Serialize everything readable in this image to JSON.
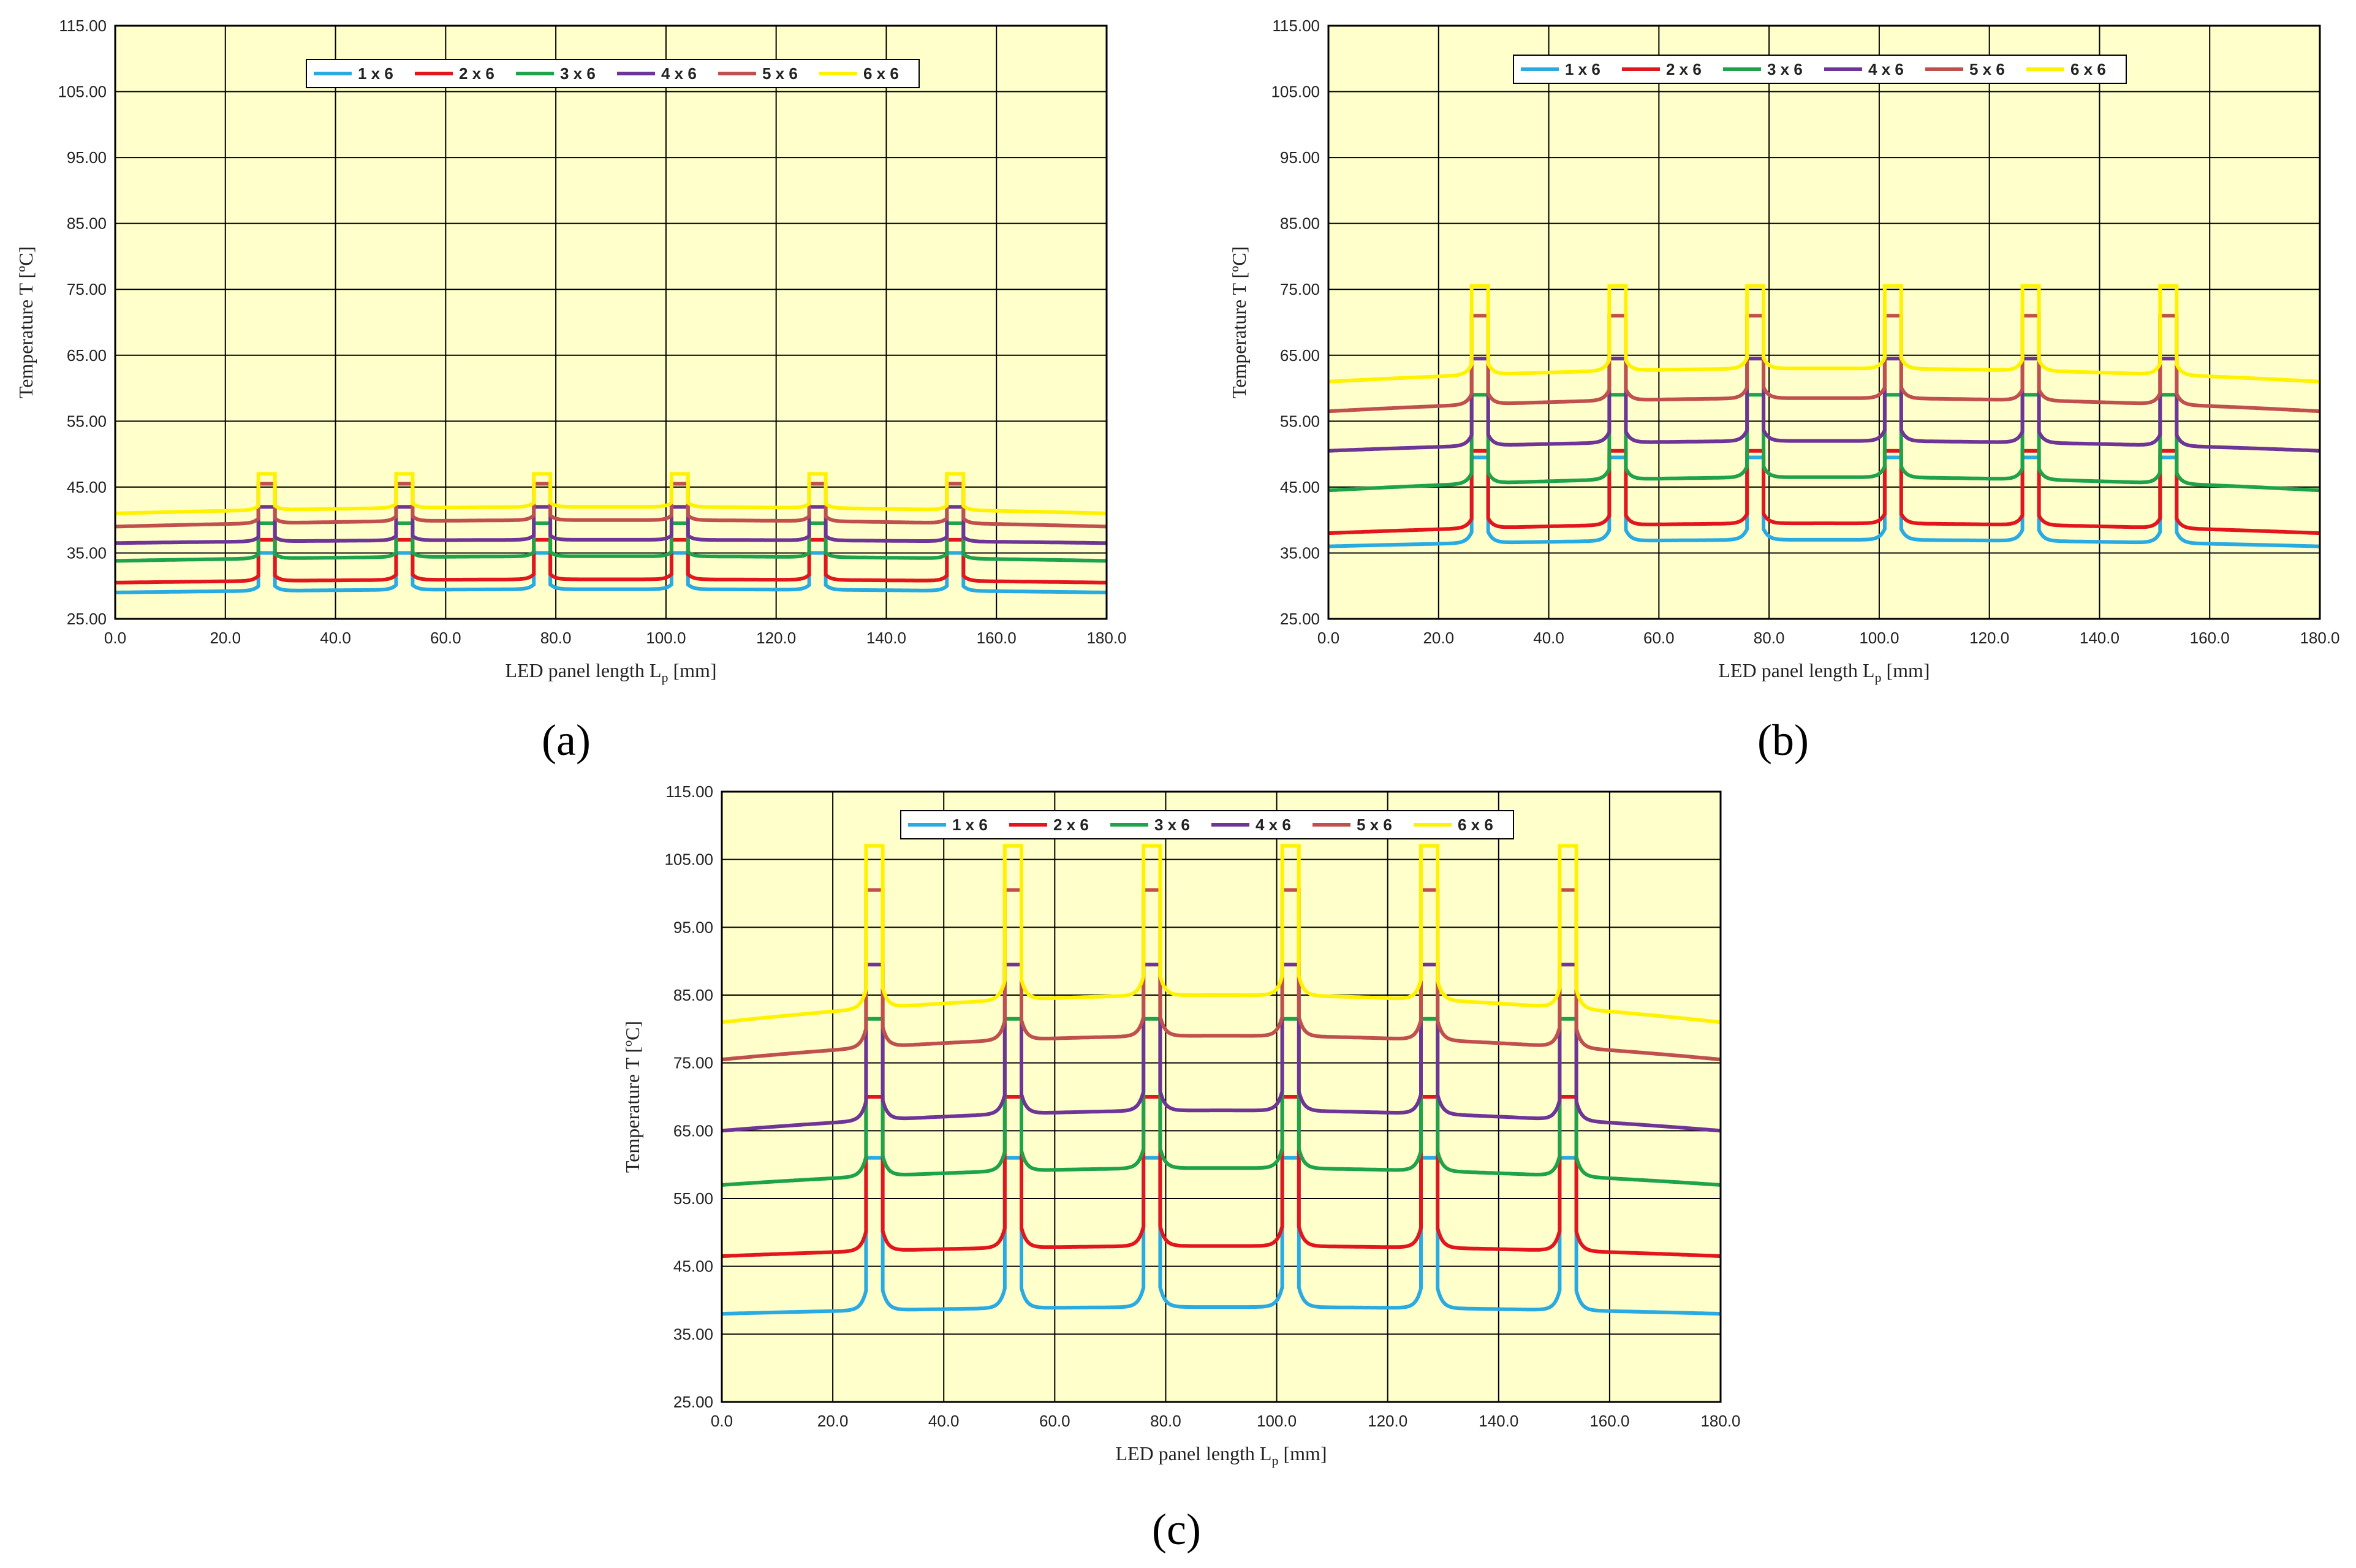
{
  "colors": {
    "plot_bg": "#FFFFCC",
    "grid": "#000000",
    "series": [
      "#29ABE2",
      "#E3161D",
      "#1FA34A",
      "#6E3596",
      "#C0504D",
      "#FFF200"
    ]
  },
  "chart_data": [
    {
      "type": "line",
      "panel_label": "(a)",
      "xlabel": "LED panel length L",
      "xlabel_sub": "p",
      "xlabel_unit": " [mm]",
      "ylabel": "Temperature T [ºC]",
      "xlim": [
        0,
        180
      ],
      "ylim": [
        25,
        115
      ],
      "x_ticks": [
        "0.0",
        "20.0",
        "40.0",
        "60.0",
        "80.0",
        "100.0",
        "120.0",
        "140.0",
        "160.0",
        "180.0"
      ],
      "y_ticks": [
        "25.00",
        "35.00",
        "45.00",
        "55.00",
        "65.00",
        "75.00",
        "85.00",
        "95.00",
        "105.00",
        "115.00"
      ],
      "led_positions": [
        27.5,
        52.5,
        77.5,
        102.5,
        127.5,
        152.5
      ],
      "led_half_width": 1.5,
      "series": [
        {
          "name": "1 x 6",
          "base_edge": 29.0,
          "base_center": 29.5,
          "peak": 35.0
        },
        {
          "name": "2 x 6",
          "base_edge": 30.5,
          "base_center": 31.0,
          "peak": 37.0
        },
        {
          "name": "3 x 6",
          "base_edge": 33.8,
          "base_center": 34.5,
          "peak": 39.5
        },
        {
          "name": "4 x 6",
          "base_edge": 36.5,
          "base_center": 37.0,
          "peak": 42.0
        },
        {
          "name": "5 x 6",
          "base_edge": 39.0,
          "base_center": 40.0,
          "peak": 45.5
        },
        {
          "name": "6 x 6",
          "base_edge": 41.0,
          "base_center": 42.0,
          "peak": 47.0
        }
      ]
    },
    {
      "type": "line",
      "panel_label": "(b)",
      "xlabel": "LED panel length L",
      "xlabel_sub": "p",
      "xlabel_unit": " [mm]",
      "ylabel": "Temperature T [ºC]",
      "xlim": [
        0,
        180
      ],
      "ylim": [
        25,
        115
      ],
      "x_ticks": [
        "0.0",
        "20.0",
        "40.0",
        "60.0",
        "80.0",
        "100.0",
        "120.0",
        "140.0",
        "160.0",
        "180.0"
      ],
      "y_ticks": [
        "25.00",
        "35.00",
        "45.00",
        "55.00",
        "65.00",
        "75.00",
        "85.00",
        "95.00",
        "105.00",
        "115.00"
      ],
      "led_positions": [
        27.5,
        52.5,
        77.5,
        102.5,
        127.5,
        152.5
      ],
      "led_half_width": 1.5,
      "series": [
        {
          "name": "1 x 6",
          "base_edge": 36.0,
          "base_center": 37.0,
          "peak": 49.5
        },
        {
          "name": "2 x 6",
          "base_edge": 38.0,
          "base_center": 39.5,
          "peak": 50.5
        },
        {
          "name": "3 x 6",
          "base_edge": 44.5,
          "base_center": 46.5,
          "peak": 59.0
        },
        {
          "name": "4 x 6",
          "base_edge": 50.5,
          "base_center": 52.0,
          "peak": 64.5
        },
        {
          "name": "5 x 6",
          "base_edge": 56.5,
          "base_center": 58.5,
          "peak": 71.0
        },
        {
          "name": "6 x 6",
          "base_edge": 61.0,
          "base_center": 63.0,
          "peak": 75.5
        }
      ]
    },
    {
      "type": "line",
      "panel_label": "(c)",
      "xlabel": "LED panel length L",
      "xlabel_sub": "p",
      "xlabel_unit": " [mm]",
      "ylabel": "Temperature T [ºC]",
      "xlim": [
        0,
        180
      ],
      "ylim": [
        25,
        115
      ],
      "x_ticks": [
        "0.0",
        "20.0",
        "40.0",
        "60.0",
        "80.0",
        "100.0",
        "120.0",
        "140.0",
        "160.0",
        "180.0"
      ],
      "y_ticks": [
        "25.00",
        "35.00",
        "45.00",
        "55.00",
        "65.00",
        "75.00",
        "85.00",
        "95.00",
        "105.00",
        "115.00"
      ],
      "led_positions": [
        27.5,
        52.5,
        77.5,
        102.5,
        127.5,
        152.5
      ],
      "led_half_width": 1.5,
      "series": [
        {
          "name": "1 x 6",
          "base_edge": 38.0,
          "base_center": 39.0,
          "peak": 61.0
        },
        {
          "name": "2 x 6",
          "base_edge": 46.5,
          "base_center": 48.0,
          "peak": 70.0
        },
        {
          "name": "3 x 6",
          "base_edge": 57.0,
          "base_center": 59.5,
          "peak": 81.5
        },
        {
          "name": "4 x 6",
          "base_edge": 65.0,
          "base_center": 68.0,
          "peak": 89.5
        },
        {
          "name": "5 x 6",
          "base_edge": 75.5,
          "base_center": 79.0,
          "peak": 100.5
        },
        {
          "name": "6 x 6",
          "base_edge": 81.0,
          "base_center": 85.0,
          "peak": 107.0
        }
      ]
    }
  ]
}
